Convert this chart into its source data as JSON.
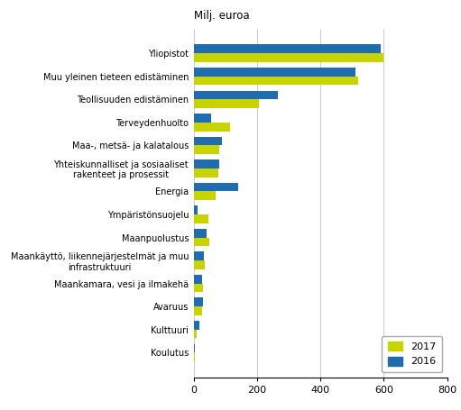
{
  "categories": [
    "Yliopistot",
    "Muu yleinen tieteen edistäminen",
    "Teollisuuden edistäminen",
    "Terveydenhuolto",
    "Maa-, metsä- ja kalatalous",
    "Yhteiskunnalliset ja sosiaaliset\nrakenteet ja prosessit",
    "Energia",
    "Ympäristönsuojelu",
    "Maanpuolustus",
    "Maankäyttö, liikennejärjestelmät ja muu\ninfrastruktuuri",
    "Maankamara, vesi ja ilmakehä",
    "Avaruus",
    "Kulttuuri",
    "Koulutus"
  ],
  "values_2017": [
    600,
    520,
    205,
    115,
    80,
    78,
    70,
    48,
    50,
    35,
    30,
    28,
    10,
    3
  ],
  "values_2016": [
    590,
    510,
    265,
    55,
    88,
    80,
    140,
    12,
    42,
    33,
    28,
    30,
    18,
    4
  ],
  "color_2017": "#c8d400",
  "color_2016": "#1f6cb0",
  "ylabel_top": "Milj. euroa",
  "xlim": [
    0,
    800
  ],
  "xticks": [
    0,
    200,
    400,
    600,
    800
  ],
  "legend_2017": "2017",
  "legend_2016": "2016",
  "background_color": "#ffffff",
  "grid_color": "#cccccc"
}
